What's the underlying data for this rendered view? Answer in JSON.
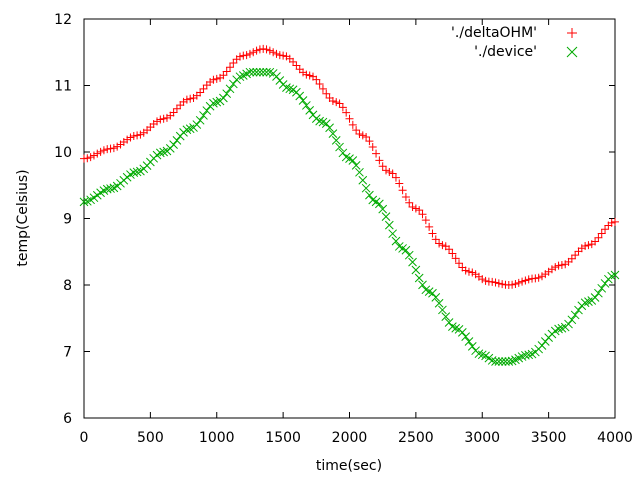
{
  "chart_data": {
    "type": "scatter",
    "xlabel": "time(sec)",
    "ylabel": "temp(Celsius)",
    "xlim": [
      0,
      4000
    ],
    "ylim": [
      6,
      12
    ],
    "xticks": [
      0,
      500,
      1000,
      1500,
      2000,
      2500,
      3000,
      3500,
      4000
    ],
    "yticks": [
      6,
      7,
      8,
      9,
      10,
      11,
      12
    ],
    "grid": false,
    "legend": "top-right",
    "x_step": 25,
    "series": [
      {
        "name": "'./deltaOHM'",
        "marker": "plus",
        "color": "#ff0000",
        "keypoints": [
          [
            0,
            9.9
          ],
          [
            200,
            10.05
          ],
          [
            400,
            10.25
          ],
          [
            600,
            10.5
          ],
          [
            800,
            10.8
          ],
          [
            1000,
            11.1
          ],
          [
            1200,
            11.45
          ],
          [
            1350,
            11.55
          ],
          [
            1500,
            11.45
          ],
          [
            1700,
            11.15
          ],
          [
            1900,
            10.75
          ],
          [
            2100,
            10.25
          ],
          [
            2300,
            9.7
          ],
          [
            2500,
            9.15
          ],
          [
            2700,
            8.6
          ],
          [
            2900,
            8.2
          ],
          [
            3050,
            8.05
          ],
          [
            3200,
            8.0
          ],
          [
            3400,
            8.1
          ],
          [
            3600,
            8.3
          ],
          [
            3800,
            8.6
          ],
          [
            4000,
            8.95
          ]
        ]
      },
      {
        "name": "'./device'",
        "marker": "cross",
        "color": "#00aa00",
        "keypoints": [
          [
            0,
            9.25
          ],
          [
            200,
            9.45
          ],
          [
            400,
            9.7
          ],
          [
            600,
            10.0
          ],
          [
            800,
            10.35
          ],
          [
            1000,
            10.75
          ],
          [
            1200,
            11.15
          ],
          [
            1250,
            11.2
          ],
          [
            1400,
            11.2
          ],
          [
            1550,
            10.95
          ],
          [
            1800,
            10.45
          ],
          [
            2000,
            9.9
          ],
          [
            2200,
            9.25
          ],
          [
            2400,
            8.55
          ],
          [
            2600,
            7.9
          ],
          [
            2800,
            7.35
          ],
          [
            3000,
            6.95
          ],
          [
            3100,
            6.85
          ],
          [
            3200,
            6.85
          ],
          [
            3350,
            6.95
          ],
          [
            3600,
            7.35
          ],
          [
            3800,
            7.75
          ],
          [
            4000,
            8.15
          ]
        ]
      }
    ]
  }
}
